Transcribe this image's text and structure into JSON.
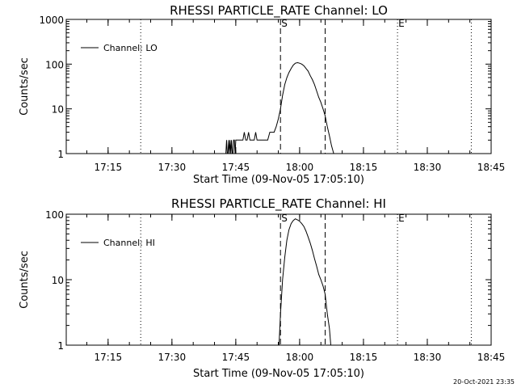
{
  "chart_data": [
    {
      "type": "line",
      "title": "RHESSI PARTICLE_RATE Channel: LO",
      "xlabel": "Start Time (09-Nov-05 17:05:10)",
      "ylabel": "Counts/sec",
      "yscale": "log",
      "ylim": [
        1,
        1000
      ],
      "xlim": [
        "17:05:10",
        "18:45:00"
      ],
      "x_ticks": [
        "17:15",
        "17:30",
        "17:45",
        "18:00",
        "18:15",
        "18:30",
        "18:45"
      ],
      "y_ticks": [
        "1",
        "10",
        "100",
        "1000"
      ],
      "legend": {
        "position": "top-left",
        "entries": [
          "Channel: LO"
        ]
      },
      "markers": [
        {
          "label": "S",
          "time": "17:55:30",
          "style": "dashed"
        },
        {
          "label": "",
          "time": "18:06:00",
          "style": "dashed"
        },
        {
          "label": "E",
          "time": "18:23:00",
          "style": "dotted"
        }
      ],
      "dotted_lines": [
        "17:22:40",
        "18:40:20"
      ],
      "series": [
        {
          "x": [
            "17:42:40",
            "17:42:50",
            "17:43:00",
            "17:43:10",
            "17:43:20",
            "17:43:30",
            "17:43:40",
            "17:43:50",
            "17:44:00",
            "17:44:10",
            "17:44:20",
            "17:44:30",
            "17:44:40",
            "17:44:50",
            "17:45:00",
            "17:45:20",
            "17:45:40",
            "17:46:00",
            "17:46:20",
            "17:46:40",
            "17:47:00",
            "17:47:20",
            "17:47:40",
            "17:48:00",
            "17:48:20",
            "17:48:40",
            "17:49:00",
            "17:49:20",
            "17:49:40",
            "17:50:00",
            "17:50:30",
            "17:51:00",
            "17:51:30",
            "17:52:00",
            "17:52:30",
            "17:53:00",
            "17:53:30",
            "17:54:00",
            "17:54:30",
            "17:55:00",
            "17:55:30",
            "17:56:00",
            "17:56:30",
            "17:57:00",
            "17:57:30",
            "17:58:00",
            "17:58:30",
            "17:59:00",
            "17:59:30",
            "18:00:00",
            "18:00:30",
            "18:01:00",
            "18:01:30",
            "18:02:00",
            "18:02:30",
            "18:03:00",
            "18:03:30",
            "18:04:00",
            "18:04:30",
            "18:05:00",
            "18:05:30",
            "18:06:00",
            "18:06:30",
            "18:07:00",
            "18:07:30",
            "18:08:00"
          ],
          "values": [
            1,
            2,
            1,
            1,
            2,
            1,
            2,
            1,
            2,
            1,
            1,
            2,
            2,
            1,
            2,
            2,
            2,
            2,
            2,
            2,
            3,
            2,
            2,
            3,
            2,
            2,
            2,
            2,
            3,
            2,
            2,
            2,
            2,
            2,
            2,
            3,
            3,
            3,
            4,
            6,
            10,
            20,
            35,
            50,
            65,
            80,
            95,
            105,
            108,
            105,
            100,
            92,
            80,
            70,
            55,
            45,
            35,
            25,
            18,
            14,
            10,
            7,
            4,
            2.5,
            1.5,
            1
          ]
        }
      ]
    },
    {
      "type": "line",
      "title": "RHESSI PARTICLE_RATE Channel: HI",
      "xlabel": "Start Time (09-Nov-05 17:05:10)",
      "ylabel": "Counts/sec",
      "yscale": "log",
      "ylim": [
        1,
        100
      ],
      "xlim": [
        "17:05:10",
        "18:45:00"
      ],
      "x_ticks": [
        "17:15",
        "17:30",
        "17:45",
        "18:00",
        "18:15",
        "18:30",
        "18:45"
      ],
      "y_ticks": [
        "1",
        "10",
        "100"
      ],
      "legend": {
        "position": "top-left",
        "entries": [
          "Channel: HI"
        ]
      },
      "markers": [
        {
          "label": "S",
          "time": "17:55:30",
          "style": "dashed"
        },
        {
          "label": "",
          "time": "18:06:00",
          "style": "dashed"
        },
        {
          "label": "E",
          "time": "18:23:00",
          "style": "dotted"
        }
      ],
      "dotted_lines": [
        "17:22:40",
        "18:40:20"
      ],
      "series": [
        {
          "x": [
            "17:55:10",
            "17:55:30",
            "17:56:00",
            "17:56:30",
            "17:57:00",
            "17:57:30",
            "17:58:00",
            "17:58:30",
            "17:59:00",
            "17:59:30",
            "18:00:00",
            "18:00:30",
            "18:01:00",
            "18:01:30",
            "18:02:00",
            "18:02:30",
            "18:03:00",
            "18:03:30",
            "18:04:00",
            "18:04:30",
            "18:05:00",
            "18:05:30",
            "18:06:00",
            "18:06:30",
            "18:07:00",
            "18:07:20"
          ],
          "values": [
            1,
            3,
            10,
            22,
            40,
            58,
            72,
            80,
            85,
            82,
            78,
            72,
            65,
            55,
            45,
            36,
            28,
            21,
            16,
            12,
            10,
            8,
            6,
            3,
            1.8,
            1
          ]
        }
      ]
    }
  ],
  "timestamp": "20-Oct-2021 23:35"
}
